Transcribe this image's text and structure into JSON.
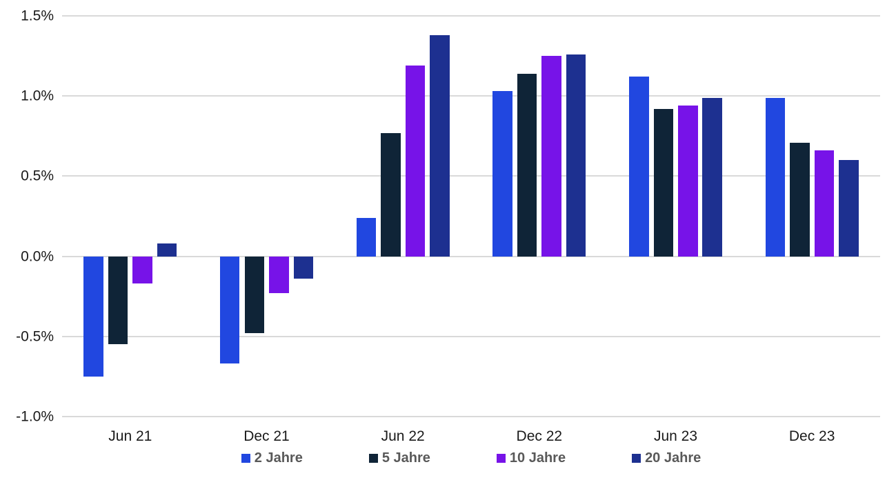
{
  "chart_data": {
    "type": "bar",
    "title": "",
    "xlabel": "",
    "ylabel": "",
    "categories": [
      "Jun 21",
      "Dec 21",
      "Jun 22",
      "Dec 22",
      "Jun 23",
      "Dec 23"
    ],
    "series": [
      {
        "name": "2 Jahre",
        "color": "#2147E0",
        "values": [
          -0.75,
          -0.67,
          0.24,
          1.03,
          1.12,
          0.99
        ]
      },
      {
        "name": "5 Jahre",
        "color": "#0F2437",
        "values": [
          -0.55,
          -0.48,
          0.77,
          1.14,
          0.92,
          0.71
        ]
      },
      {
        "name": "10 Jahre",
        "color": "#7713E8",
        "values": [
          -0.17,
          -0.23,
          1.19,
          1.25,
          0.94,
          0.66
        ]
      },
      {
        "name": "20 Jahre",
        "color": "#1D3090",
        "values": [
          0.08,
          -0.14,
          1.38,
          1.26,
          0.99,
          0.6
        ]
      }
    ],
    "y_ticks": [
      "1.5%",
      "1.0%",
      "0.5%",
      "0.0%",
      "-0.5%",
      "-1.0%"
    ],
    "ylim": [
      -1.0,
      1.5
    ],
    "y_tick_step": 0.5,
    "grid": true,
    "legend_position": "bottom"
  },
  "style": {
    "gridline_color": "#D9D9D9",
    "axis_text_color": "#1A1A1A",
    "legend_text_color": "#595959",
    "background_color": "#FFFFFF"
  }
}
